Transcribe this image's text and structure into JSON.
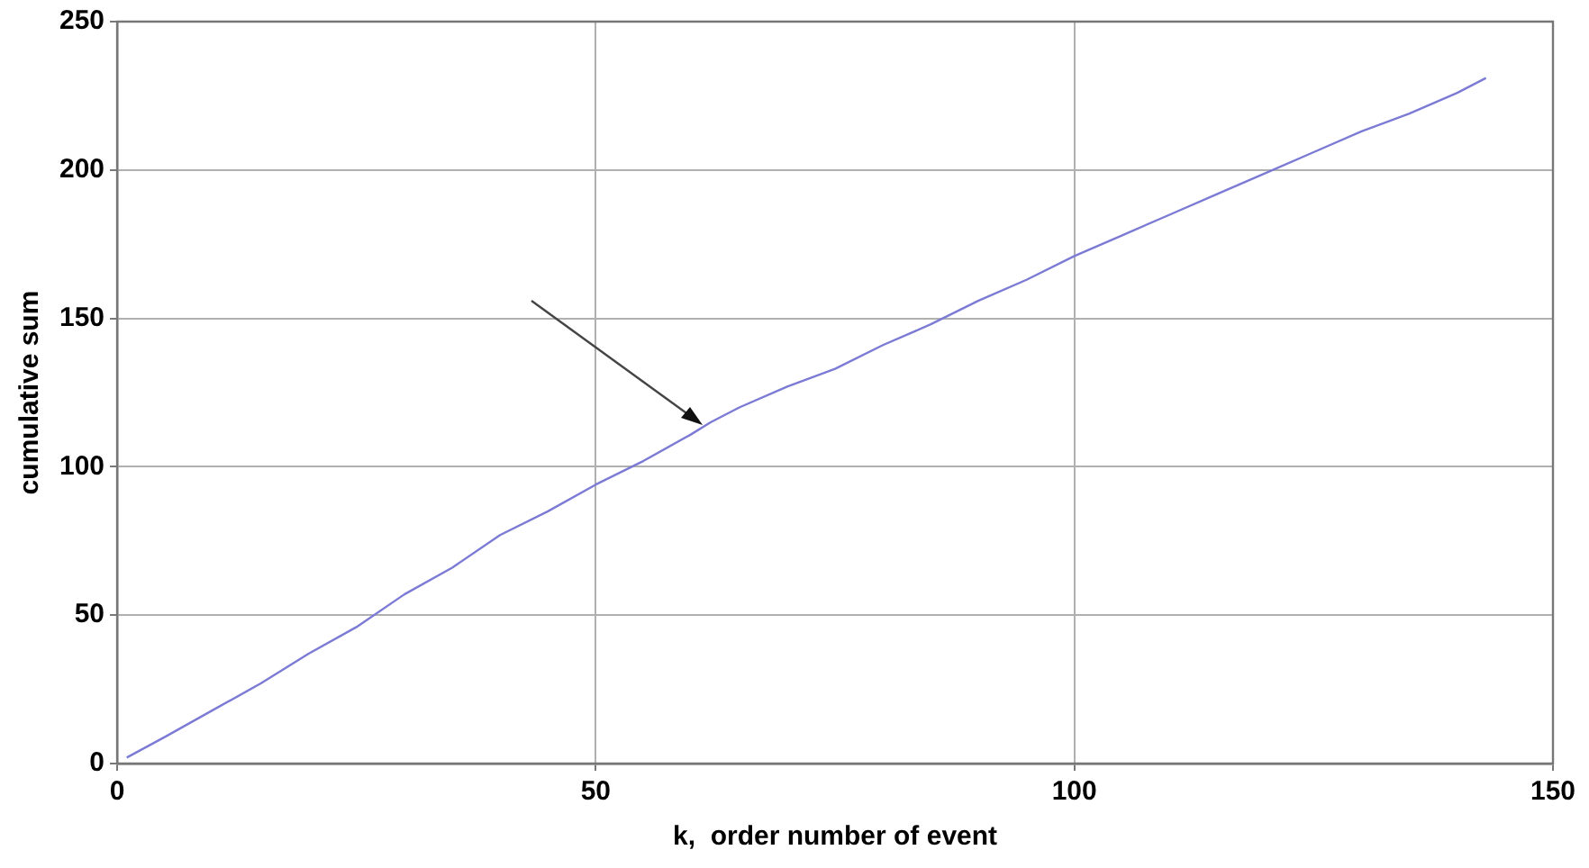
{
  "chart_data": {
    "type": "line",
    "xlabel": "k,  order number of event",
    "ylabel": "cumulative sum",
    "x": [
      1,
      5,
      10,
      15,
      20,
      25,
      30,
      35,
      40,
      45,
      50,
      55,
      60,
      62,
      65,
      70,
      75,
      80,
      85,
      90,
      95,
      100,
      105,
      110,
      115,
      120,
      125,
      130,
      135,
      140,
      143
    ],
    "series": [
      {
        "color": "#7b7bd6",
        "values": [
          2,
          9,
          18,
          27,
          37,
          46,
          57,
          66,
          77,
          85,
          94,
          102,
          111,
          115,
          120,
          127,
          133,
          141,
          148,
          156,
          163,
          171,
          178,
          185,
          192,
          199,
          206,
          213,
          219,
          226,
          231
        ]
      }
    ],
    "xlim": [
      0,
      150
    ],
    "xticks": [
      0,
      50,
      100,
      150
    ],
    "ylim": [
      0,
      250
    ],
    "yticks": [
      0,
      50,
      100,
      150,
      200,
      250
    ],
    "grid": true,
    "legend": false,
    "marker": "none",
    "line_style": "solid"
  }
}
